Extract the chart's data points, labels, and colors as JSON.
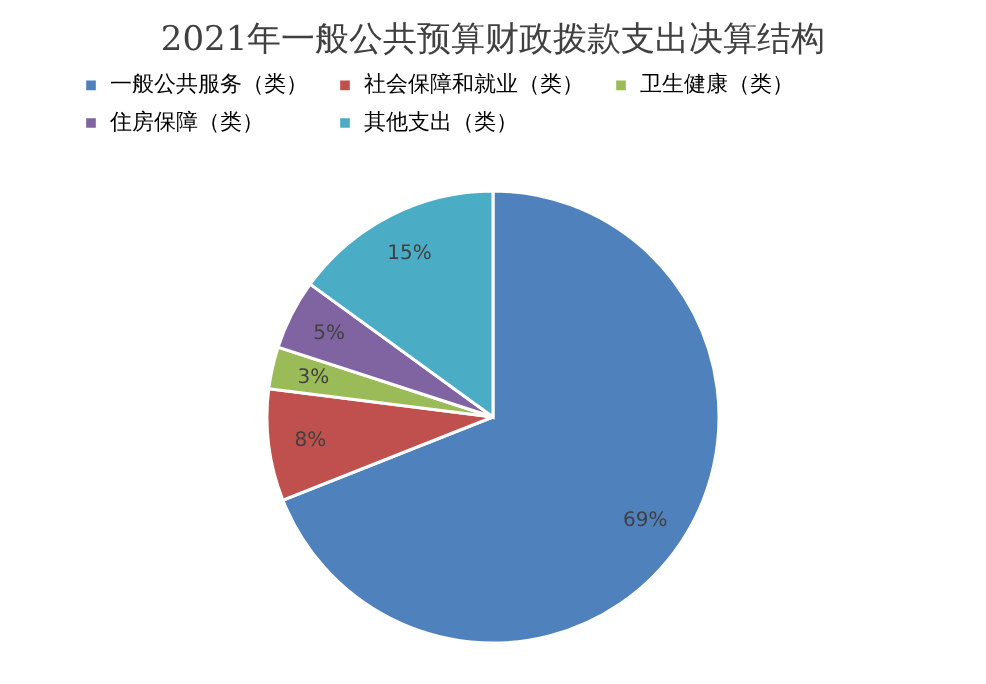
{
  "chart_data": {
    "type": "pie",
    "title": "2021年一般公共预算财政拨款支出决算结构",
    "categories": [
      "一般公共服务（类）",
      "社会保障和就业（类）",
      "卫生健康（类）",
      "住房保障（类）",
      "其他支出（类）"
    ],
    "values": [
      69,
      8,
      3,
      5,
      15
    ],
    "colors": [
      "#4f81bd",
      "#c0504d",
      "#9bbb59",
      "#8064a2",
      "#4bacc6"
    ],
    "value_labels": [
      "69%",
      "8%",
      "3%",
      "5%",
      "15%"
    ],
    "legend": "top left"
  }
}
